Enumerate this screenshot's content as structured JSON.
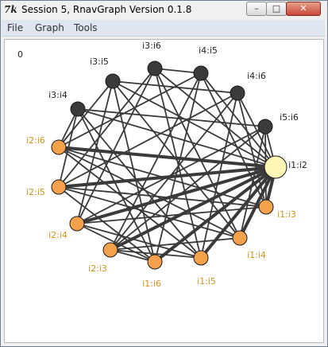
{
  "window": {
    "icon_text": "7k",
    "title": "Session 5, RnavGraph Version 0.1.8"
  },
  "menu": {
    "items": [
      "File",
      "Graph",
      "Tools"
    ]
  },
  "canvas": {
    "counter": "0",
    "colors": {
      "dark_node": "#3b3b3b",
      "orange_node": "#f5a04a",
      "selected_node": "#fdf6b4",
      "edge": "#3a3a3a",
      "dark_label": "#222222",
      "orange_label": "#d4921a"
    }
  }
}
